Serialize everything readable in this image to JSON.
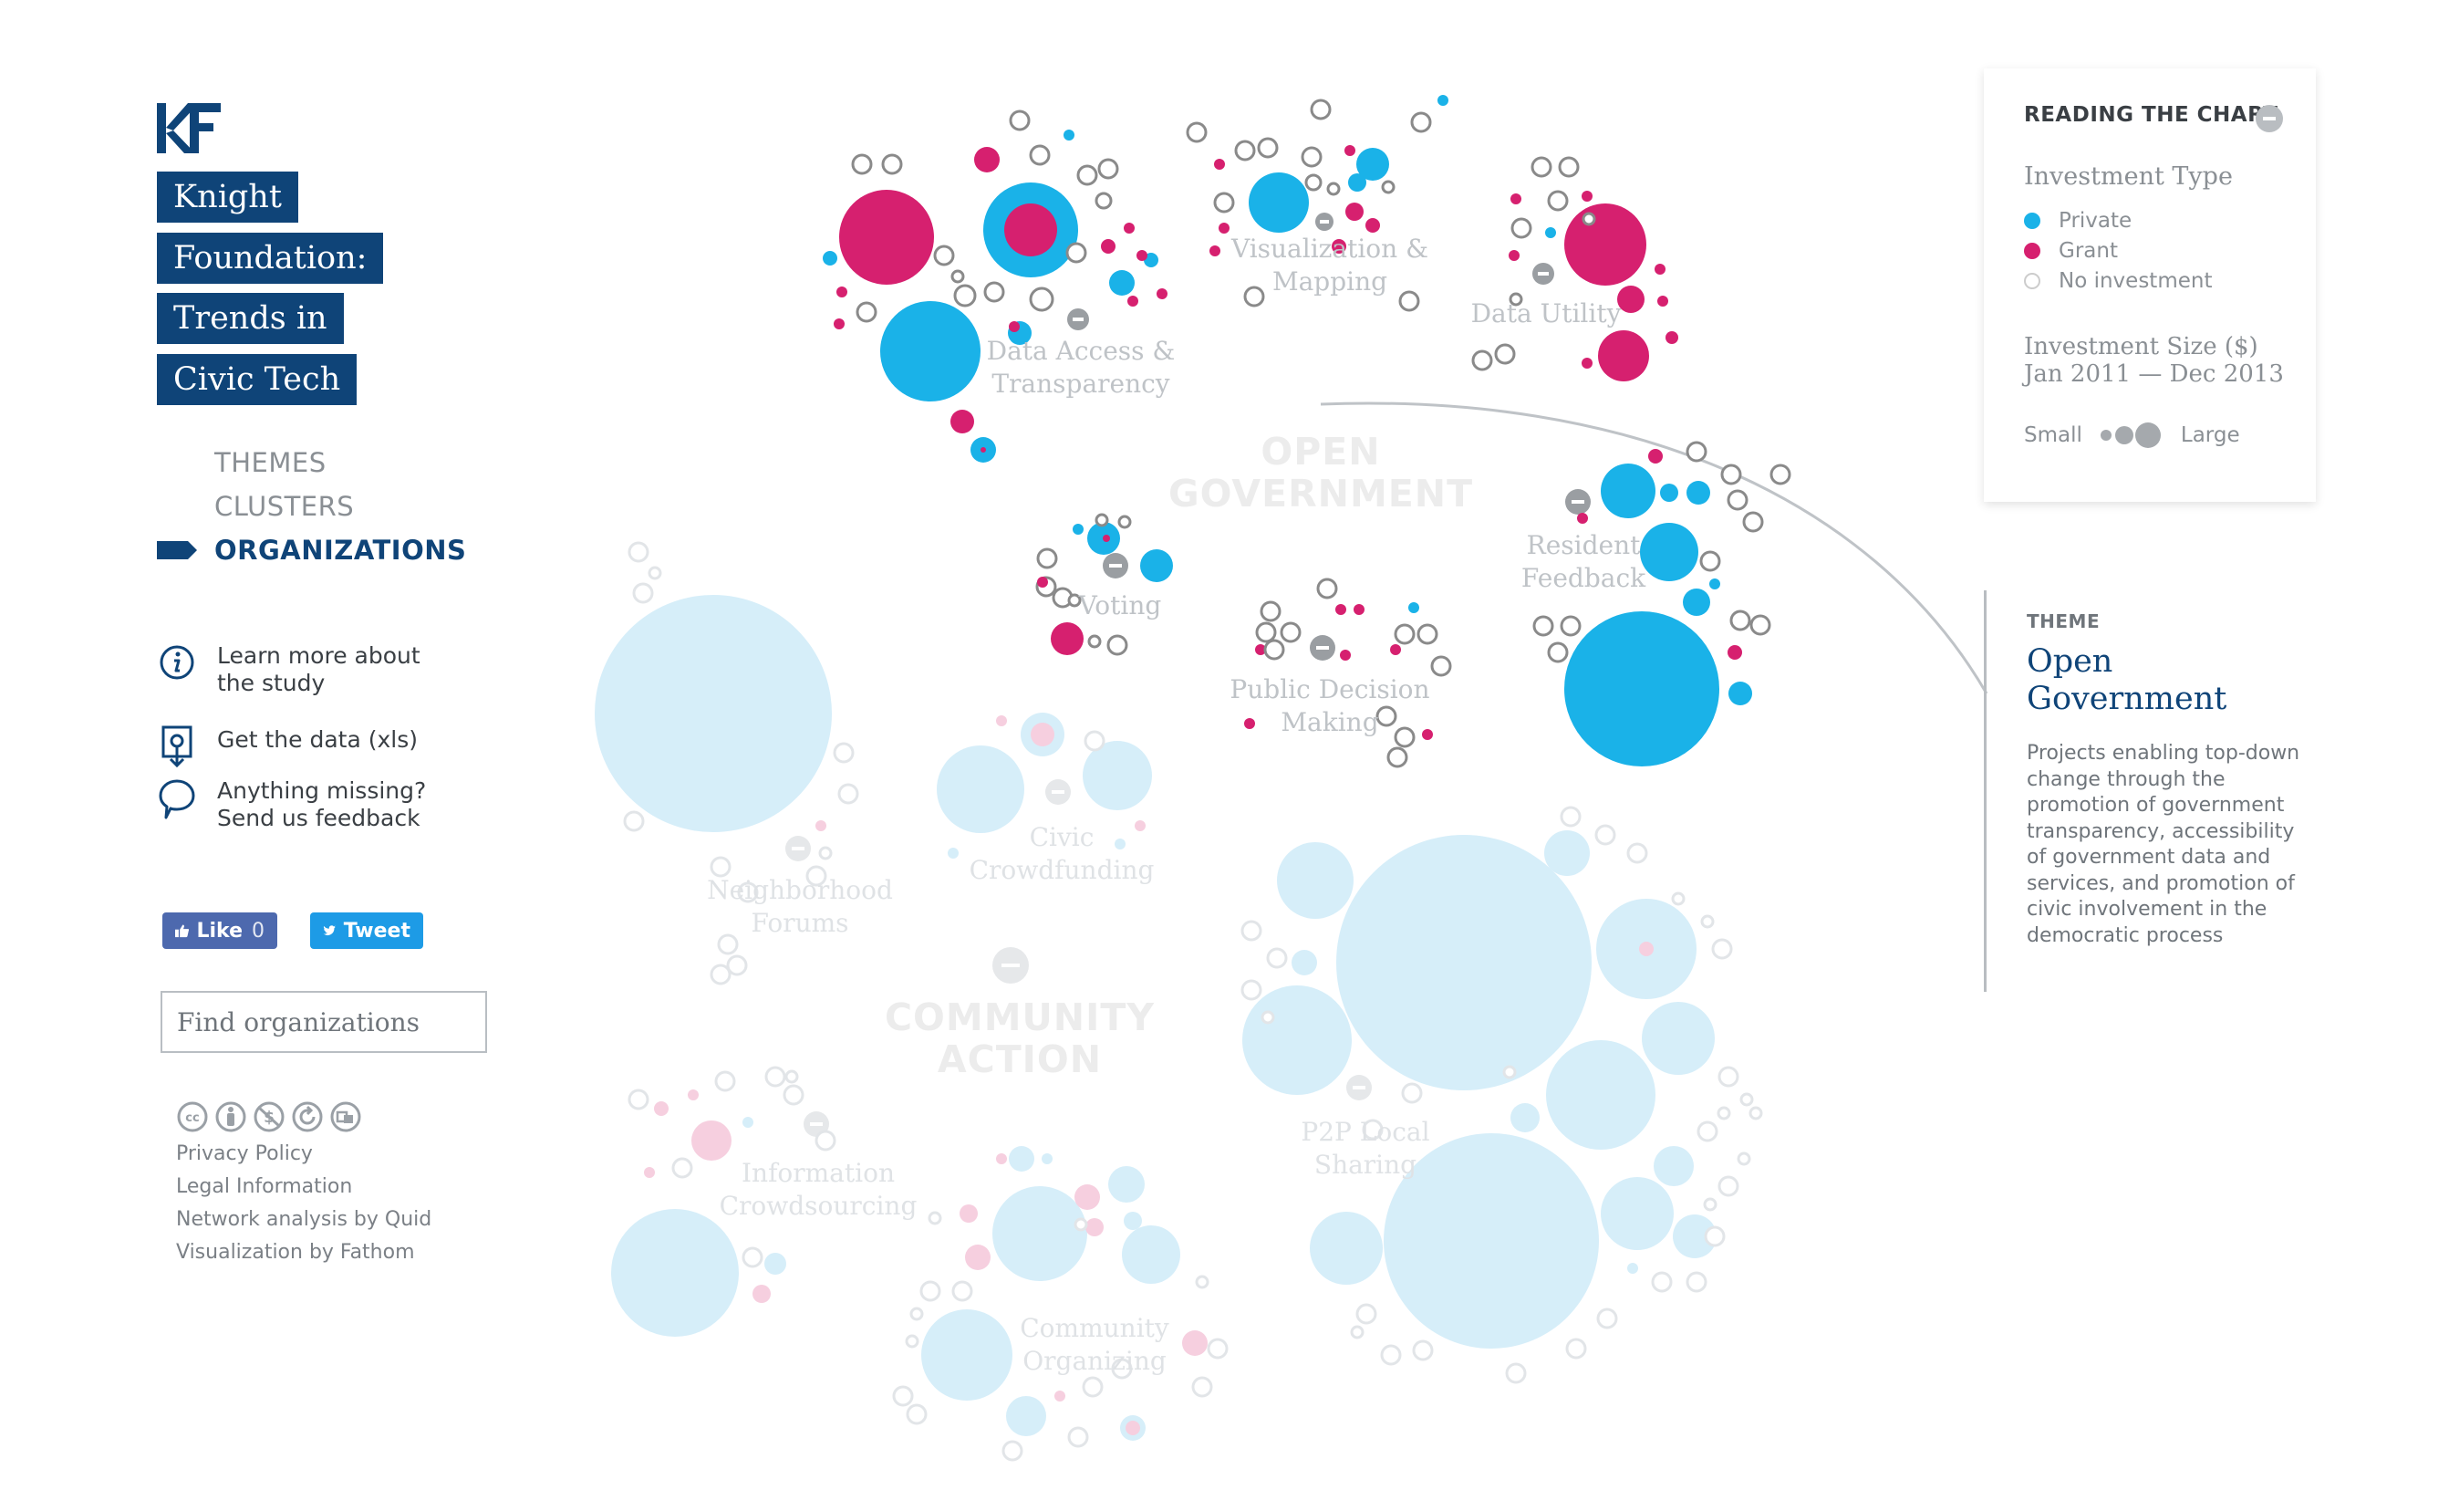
{
  "header": {
    "logo_text": "KF",
    "title_lines": [
      "Knight",
      "Foundation:",
      "Trends in",
      "Civic Tech"
    ]
  },
  "nav": {
    "items": [
      {
        "label": "THEMES",
        "active": false
      },
      {
        "label": "CLUSTERS",
        "active": false
      },
      {
        "label": "ORGANIZATIONS",
        "active": true
      }
    ]
  },
  "links": {
    "learn": "Learn more about the study",
    "data": "Get the data (xls)",
    "feedback": "Anything missing? Send us feedback"
  },
  "social": {
    "like_label": "Like",
    "like_count": "0",
    "tweet_label": "Tweet"
  },
  "search": {
    "placeholder": "Find organizations"
  },
  "footer": {
    "license_icons": [
      "cc-icon",
      "by-icon",
      "nc-icon",
      "sa-icon",
      "remix-icon"
    ],
    "links": [
      "Privacy Policy",
      "Legal Information",
      "Network analysis by Quid",
      "Visualization by Fathom"
    ]
  },
  "legend": {
    "title": "READING THE CHART",
    "type_heading": "Investment Type",
    "types": [
      {
        "label": "Private",
        "color": "#1ab2e8"
      },
      {
        "label": "Grant",
        "color": "#d6206f"
      },
      {
        "label": "No investment",
        "color": "#cccccc"
      }
    ],
    "size_heading_1": "Investment Size ($)",
    "size_heading_2": "Jan 2011 — Dec 2013",
    "size_small": "Small",
    "size_large": "Large"
  },
  "detail": {
    "kicker": "THEME",
    "name": "Open Government",
    "description": "Projects enabling top-down change through the promotion of government transparency, accessibility of government data and services, and promotion of civic involvement in the democratic process"
  },
  "chart": {
    "colors": {
      "private": "#1ab2e8",
      "grant": "#d6206f",
      "none": "#8a8a8a",
      "private_dim": "#d6eef9",
      "grant_dim": "#f6cfdf",
      "none_dim": "#e2e5e8"
    },
    "themes": [
      "OPEN GOVERNMENT",
      "COMMUNITY ACTION"
    ],
    "clusters": [
      "Data Access & Transparency",
      "Visualization & Mapping",
      "Data Utility",
      "Voting",
      "Public Decision Making",
      "Resident Feedback",
      "Neighborhood Forums",
      "Civic Crowdfunding",
      "Information Crowdsourcing",
      "Community Organizing",
      "P2P Local Sharing"
    ]
  }
}
